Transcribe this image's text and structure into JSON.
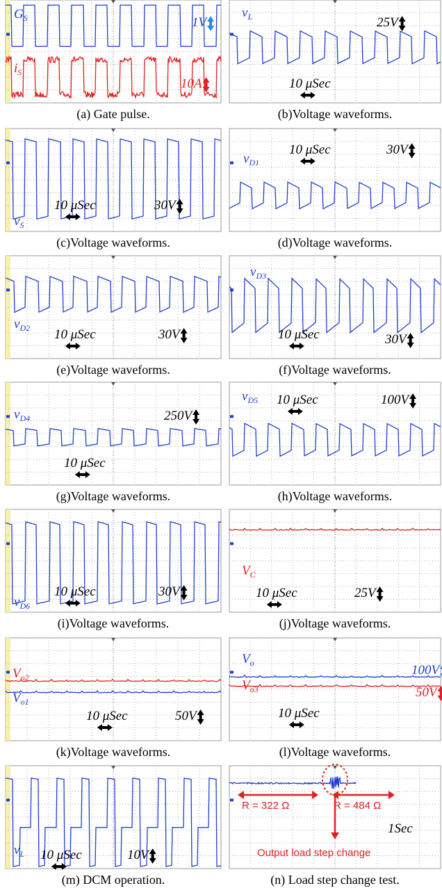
{
  "panels": [
    {
      "caption": "(a) Gate pulse.",
      "labels": [
        {
          "text": "G",
          "sub": "S"
        },
        {
          "text": "1V"
        },
        {
          "text": "i",
          "sub": "S"
        },
        {
          "text": "10A"
        }
      ]
    },
    {
      "caption": "(b)Voltage waveforms.",
      "labels": [
        {
          "text": "v",
          "sub": "L"
        },
        {
          "text": "25V"
        },
        {
          "text": "10 μSec"
        }
      ]
    },
    {
      "caption": "(c)Voltage waveforms.",
      "labels": [
        {
          "text": "v",
          "sub": "S"
        },
        {
          "text": "10 μSec"
        },
        {
          "text": "30V"
        }
      ]
    },
    {
      "caption": "(d)Voltage waveforms.",
      "labels": [
        {
          "text": "v",
          "sub": "D1"
        },
        {
          "text": "10 μSec"
        },
        {
          "text": "30V"
        }
      ]
    },
    {
      "caption": "(e)Voltage waveforms.",
      "labels": [
        {
          "text": "v",
          "sub": "D2"
        },
        {
          "text": "10 μSec"
        },
        {
          "text": "30V"
        }
      ]
    },
    {
      "caption": "(f)Voltage waveforms.",
      "labels": [
        {
          "text": "v",
          "sub": "D3"
        },
        {
          "text": "10 μSec"
        },
        {
          "text": "30V"
        }
      ]
    },
    {
      "caption": "(g)Voltage waveforms.",
      "labels": [
        {
          "text": "v",
          "sub": "D4"
        },
        {
          "text": "250V"
        },
        {
          "text": "10 μSec"
        }
      ]
    },
    {
      "caption": "(h)Voltage waveforms.",
      "labels": [
        {
          "text": "v",
          "sub": "D5"
        },
        {
          "text": "10 μSec"
        },
        {
          "text": "100V"
        }
      ]
    },
    {
      "caption": "(i)Voltage waveforms.",
      "labels": [
        {
          "text": "v",
          "sub": "D6"
        },
        {
          "text": "10 μSec"
        },
        {
          "text": "30V"
        }
      ]
    },
    {
      "caption": "(j)Voltage waveforms.",
      "labels": [
        {
          "text": "V",
          "sub": "C"
        },
        {
          "text": "10 μSec"
        },
        {
          "text": "25V"
        }
      ]
    },
    {
      "caption": "(k)Voltage waveforms.",
      "labels": [
        {
          "text": "V",
          "sub": "o2"
        },
        {
          "text": "V",
          "sub": "o1"
        },
        {
          "text": "10 μSec"
        },
        {
          "text": "50V"
        }
      ]
    },
    {
      "caption": "(l)Voltage waveforms.",
      "labels": [
        {
          "text": "V",
          "sub": "o"
        },
        {
          "text": "100V"
        },
        {
          "text": "V",
          "sub": "o3"
        },
        {
          "text": "50V"
        },
        {
          "text": "10 μSec"
        }
      ]
    },
    {
      "caption": "(m) DCM operation.",
      "labels": [
        {
          "text": "v",
          "sub": "L"
        },
        {
          "text": "10 μSec"
        },
        {
          "text": "10V"
        }
      ]
    },
    {
      "caption": "(n) Load step change test.",
      "labels": [
        {
          "text": "R = 322 Ω"
        },
        {
          "text": "R = 484 Ω"
        },
        {
          "text": "1Sec"
        },
        {
          "text": "Output load step change"
        }
      ]
    }
  ]
}
